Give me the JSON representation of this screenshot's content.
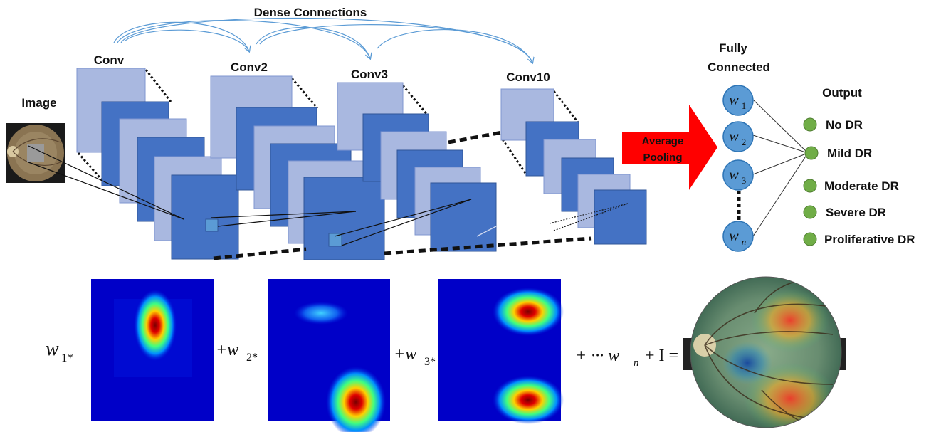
{
  "header": {
    "dense_connections": "Dense Connections"
  },
  "network": {
    "input_label": "Image",
    "blocks": [
      {
        "label": "Conv"
      },
      {
        "label": "Conv2"
      },
      {
        "label": "Conv3"
      },
      {
        "label": "Conv10"
      }
    ],
    "pooling": {
      "line1": "Average",
      "line2": "Pooling"
    },
    "fc": {
      "title_line1": "Fully",
      "title_line2": "Connected",
      "nodes": [
        {
          "base": "w",
          "sub": "1"
        },
        {
          "base": "w",
          "sub": "2"
        },
        {
          "base": "w",
          "sub": "3"
        },
        {
          "base": "w",
          "sub": "n"
        }
      ]
    },
    "output": {
      "title": "Output",
      "classes": [
        "No DR",
        "Mild DR",
        "Moderate DR",
        "Severe DR",
        "Proliferative DR"
      ]
    }
  },
  "equation": {
    "term1": {
      "base": "w",
      "sub": "1*"
    },
    "term2": {
      "prefix": "+w",
      "sub": "2*"
    },
    "term3": {
      "prefix": "+w",
      "sub": "3*"
    },
    "tail": {
      "prefix": "+ ··· w",
      "sub": "n",
      "suffix": "+ I ="
    }
  },
  "colors": {
    "light_block": "#a9b8e0",
    "dark_block": "#4472c4",
    "node": "#5b9bd5",
    "output_node": "#70ad47",
    "arrow": "#ff0000",
    "dense_arc": "#5b9bd5"
  }
}
